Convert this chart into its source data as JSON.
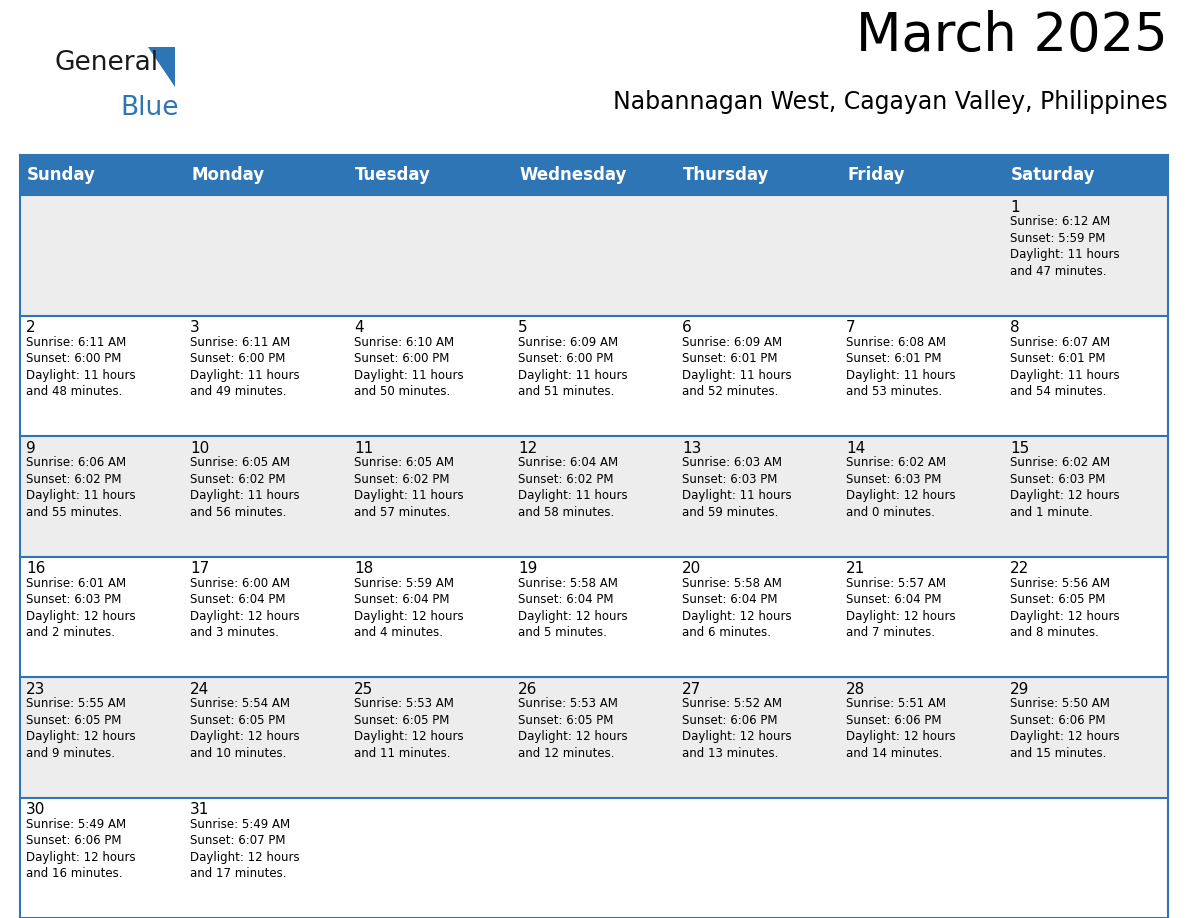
{
  "title": "March 2025",
  "subtitle": "Nabannagan West, Cagayan Valley, Philippines",
  "header_color": "#2E75B6",
  "header_text_color": "#FFFFFF",
  "day_names": [
    "Sunday",
    "Monday",
    "Tuesday",
    "Wednesday",
    "Thursday",
    "Friday",
    "Saturday"
  ],
  "odd_row_color": "#EDEDED",
  "even_row_color": "#FFFFFF",
  "border_color": "#2E75B6",
  "text_color": "#000000",
  "logo_black_color": "#1A1A1A",
  "logo_blue_color": "#2E75B6",
  "calendar_data": [
    [
      "",
      "",
      "",
      "",
      "",
      "",
      "1\nSunrise: 6:12 AM\nSunset: 5:59 PM\nDaylight: 11 hours\nand 47 minutes."
    ],
    [
      "2\nSunrise: 6:11 AM\nSunset: 6:00 PM\nDaylight: 11 hours\nand 48 minutes.",
      "3\nSunrise: 6:11 AM\nSunset: 6:00 PM\nDaylight: 11 hours\nand 49 minutes.",
      "4\nSunrise: 6:10 AM\nSunset: 6:00 PM\nDaylight: 11 hours\nand 50 minutes.",
      "5\nSunrise: 6:09 AM\nSunset: 6:00 PM\nDaylight: 11 hours\nand 51 minutes.",
      "6\nSunrise: 6:09 AM\nSunset: 6:01 PM\nDaylight: 11 hours\nand 52 minutes.",
      "7\nSunrise: 6:08 AM\nSunset: 6:01 PM\nDaylight: 11 hours\nand 53 minutes.",
      "8\nSunrise: 6:07 AM\nSunset: 6:01 PM\nDaylight: 11 hours\nand 54 minutes."
    ],
    [
      "9\nSunrise: 6:06 AM\nSunset: 6:02 PM\nDaylight: 11 hours\nand 55 minutes.",
      "10\nSunrise: 6:05 AM\nSunset: 6:02 PM\nDaylight: 11 hours\nand 56 minutes.",
      "11\nSunrise: 6:05 AM\nSunset: 6:02 PM\nDaylight: 11 hours\nand 57 minutes.",
      "12\nSunrise: 6:04 AM\nSunset: 6:02 PM\nDaylight: 11 hours\nand 58 minutes.",
      "13\nSunrise: 6:03 AM\nSunset: 6:03 PM\nDaylight: 11 hours\nand 59 minutes.",
      "14\nSunrise: 6:02 AM\nSunset: 6:03 PM\nDaylight: 12 hours\nand 0 minutes.",
      "15\nSunrise: 6:02 AM\nSunset: 6:03 PM\nDaylight: 12 hours\nand 1 minute."
    ],
    [
      "16\nSunrise: 6:01 AM\nSunset: 6:03 PM\nDaylight: 12 hours\nand 2 minutes.",
      "17\nSunrise: 6:00 AM\nSunset: 6:04 PM\nDaylight: 12 hours\nand 3 minutes.",
      "18\nSunrise: 5:59 AM\nSunset: 6:04 PM\nDaylight: 12 hours\nand 4 minutes.",
      "19\nSunrise: 5:58 AM\nSunset: 6:04 PM\nDaylight: 12 hours\nand 5 minutes.",
      "20\nSunrise: 5:58 AM\nSunset: 6:04 PM\nDaylight: 12 hours\nand 6 minutes.",
      "21\nSunrise: 5:57 AM\nSunset: 6:04 PM\nDaylight: 12 hours\nand 7 minutes.",
      "22\nSunrise: 5:56 AM\nSunset: 6:05 PM\nDaylight: 12 hours\nand 8 minutes."
    ],
    [
      "23\nSunrise: 5:55 AM\nSunset: 6:05 PM\nDaylight: 12 hours\nand 9 minutes.",
      "24\nSunrise: 5:54 AM\nSunset: 6:05 PM\nDaylight: 12 hours\nand 10 minutes.",
      "25\nSunrise: 5:53 AM\nSunset: 6:05 PM\nDaylight: 12 hours\nand 11 minutes.",
      "26\nSunrise: 5:53 AM\nSunset: 6:05 PM\nDaylight: 12 hours\nand 12 minutes.",
      "27\nSunrise: 5:52 AM\nSunset: 6:06 PM\nDaylight: 12 hours\nand 13 minutes.",
      "28\nSunrise: 5:51 AM\nSunset: 6:06 PM\nDaylight: 12 hours\nand 14 minutes.",
      "29\nSunrise: 5:50 AM\nSunset: 6:06 PM\nDaylight: 12 hours\nand 15 minutes."
    ],
    [
      "30\nSunrise: 5:49 AM\nSunset: 6:06 PM\nDaylight: 12 hours\nand 16 minutes.",
      "31\nSunrise: 5:49 AM\nSunset: 6:07 PM\nDaylight: 12 hours\nand 17 minutes.",
      "",
      "",
      "",
      "",
      ""
    ]
  ]
}
